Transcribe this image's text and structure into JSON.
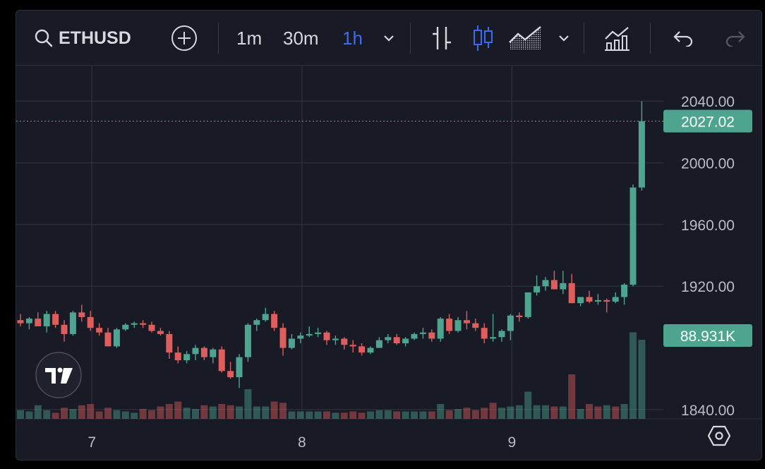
{
  "toolbar": {
    "symbol": "ETHUSD",
    "intervals": [
      "1m",
      "30m",
      "1h"
    ],
    "active_interval": "1h",
    "icons": [
      "search-icon",
      "add-circle-icon",
      "chevron-down-icon",
      "bar-chart-icon",
      "candlestick-icon",
      "area-chart-icon",
      "chevron-down-icon",
      "indicators-icon",
      "undo-icon",
      "redo-icon"
    ]
  },
  "colors": {
    "up": "#4ea58f",
    "down": "#de5e5e",
    "active": "#3b6cf0",
    "text": "#d6d8de",
    "axis_text": "#b8bcc6"
  },
  "badges": {
    "price_label": "2027.02",
    "volume_label": "88.931K"
  },
  "chart_data": {
    "type": "candlestick",
    "title": "",
    "y_ticks": [
      "2040.00",
      "2000.00",
      "1960.00",
      "1920.00",
      "1840.00"
    ],
    "x_ticks": [
      "7",
      "8",
      "9"
    ],
    "ylim": [
      1834,
      2063
    ],
    "grid": true,
    "last_price": 2027.02,
    "last_volume": "88.931K",
    "ohlc": [
      [
        1898,
        1902,
        1894,
        1896
      ],
      [
        1896,
        1900,
        1892,
        1899
      ],
      [
        1899,
        1903,
        1895,
        1894
      ],
      [
        1894,
        1904,
        1890,
        1902
      ],
      [
        1902,
        1904,
        1893,
        1895
      ],
      [
        1895,
        1898,
        1884,
        1889
      ],
      [
        1889,
        1904,
        1888,
        1903
      ],
      [
        1903,
        1908,
        1897,
        1900
      ],
      [
        1900,
        1904,
        1891,
        1893
      ],
      [
        1893,
        1896,
        1888,
        1890
      ],
      [
        1890,
        1893,
        1881,
        1881
      ],
      [
        1881,
        1893,
        1880,
        1892
      ],
      [
        1892,
        1896,
        1891,
        1895
      ],
      [
        1895,
        1897,
        1893,
        1896
      ],
      [
        1896,
        1898,
        1893,
        1895
      ],
      [
        1895,
        1897,
        1890,
        1891
      ],
      [
        1891,
        1893,
        1888,
        1889
      ],
      [
        1889,
        1891,
        1873,
        1877
      ],
      [
        1877,
        1881,
        1870,
        1872
      ],
      [
        1872,
        1878,
        1870,
        1876
      ],
      [
        1876,
        1882,
        1872,
        1880
      ],
      [
        1880,
        1881,
        1872,
        1874
      ],
      [
        1874,
        1880,
        1870,
        1879
      ],
      [
        1879,
        1881,
        1864,
        1865
      ],
      [
        1865,
        1871,
        1860,
        1861
      ],
      [
        1861,
        1876,
        1854,
        1874
      ],
      [
        1874,
        1896,
        1871,
        1895
      ],
      [
        1895,
        1899,
        1891,
        1898
      ],
      [
        1898,
        1906,
        1897,
        1902
      ],
      [
        1902,
        1904,
        1891,
        1893
      ],
      [
        1893,
        1896,
        1875,
        1880
      ],
      [
        1880,
        1889,
        1879,
        1886
      ],
      [
        1886,
        1890,
        1883,
        1888
      ],
      [
        1888,
        1894,
        1887,
        1889
      ],
      [
        1889,
        1893,
        1887,
        1890
      ],
      [
        1890,
        1891,
        1882,
        1885
      ],
      [
        1885,
        1888,
        1882,
        1886
      ],
      [
        1886,
        1887,
        1879,
        1882
      ],
      [
        1882,
        1885,
        1877,
        1881
      ],
      [
        1881,
        1883,
        1875,
        1877
      ],
      [
        1877,
        1881,
        1876,
        1880
      ],
      [
        1880,
        1887,
        1880,
        1885
      ],
      [
        1885,
        1889,
        1883,
        1887
      ],
      [
        1887,
        1889,
        1882,
        1883
      ],
      [
        1883,
        1887,
        1881,
        1886
      ],
      [
        1886,
        1890,
        1885,
        1889
      ],
      [
        1889,
        1893,
        1886,
        1890
      ],
      [
        1890,
        1892,
        1884,
        1886
      ],
      [
        1886,
        1900,
        1884,
        1899
      ],
      [
        1899,
        1902,
        1889,
        1891
      ],
      [
        1891,
        1900,
        1890,
        1898
      ],
      [
        1898,
        1904,
        1892,
        1896
      ],
      [
        1896,
        1899,
        1891,
        1893
      ],
      [
        1893,
        1896,
        1883,
        1886
      ],
      [
        1886,
        1902,
        1884,
        1887
      ],
      [
        1887,
        1892,
        1884,
        1891
      ],
      [
        1891,
        1902,
        1885,
        1901
      ],
      [
        1901,
        1903,
        1897,
        1900
      ],
      [
        1900,
        1916,
        1899,
        1916
      ],
      [
        1916,
        1927,
        1914,
        1920
      ],
      [
        1920,
        1926,
        1917,
        1924
      ],
      [
        1924,
        1930,
        1918,
        1918
      ],
      [
        1918,
        1930,
        1915,
        1922
      ],
      [
        1922,
        1928,
        1909,
        1909
      ],
      [
        1909,
        1913,
        1907,
        1913
      ],
      [
        1913,
        1917,
        1909,
        1910
      ],
      [
        1910,
        1915,
        1908,
        1911
      ],
      [
        1911,
        1912,
        1903,
        1910
      ],
      [
        1910,
        1916,
        1909,
        1913
      ],
      [
        1913,
        1922,
        1908,
        1921
      ],
      [
        1921,
        1986,
        1920,
        1984
      ],
      [
        1984,
        2040,
        1982,
        2027.02
      ]
    ],
    "volume": [
      [
        7,
        0
      ],
      [
        6,
        0
      ],
      [
        11,
        0
      ],
      [
        7,
        0
      ],
      [
        5,
        1
      ],
      [
        9,
        1
      ],
      [
        8,
        0
      ],
      [
        11,
        1
      ],
      [
        12,
        1
      ],
      [
        6,
        1
      ],
      [
        9,
        1
      ],
      [
        7,
        0
      ],
      [
        6,
        0
      ],
      [
        5,
        0
      ],
      [
        8,
        1
      ],
      [
        7,
        1
      ],
      [
        10,
        1
      ],
      [
        12,
        1
      ],
      [
        14,
        1
      ],
      [
        9,
        0
      ],
      [
        8,
        0
      ],
      [
        11,
        1
      ],
      [
        10,
        0
      ],
      [
        12,
        1
      ],
      [
        11,
        1
      ],
      [
        10,
        0
      ],
      [
        24,
        0
      ],
      [
        10,
        0
      ],
      [
        10,
        0
      ],
      [
        14,
        1
      ],
      [
        13,
        1
      ],
      [
        6,
        0
      ],
      [
        6,
        0
      ],
      [
        6,
        0
      ],
      [
        6,
        0
      ],
      [
        6,
        1
      ],
      [
        5,
        0
      ],
      [
        5,
        1
      ],
      [
        6,
        1
      ],
      [
        5,
        1
      ],
      [
        6,
        0
      ],
      [
        7,
        0
      ],
      [
        7,
        0
      ],
      [
        6,
        1
      ],
      [
        6,
        0
      ],
      [
        6,
        0
      ],
      [
        6,
        0
      ],
      [
        6,
        1
      ],
      [
        12,
        0
      ],
      [
        7,
        1
      ],
      [
        8,
        0
      ],
      [
        9,
        1
      ],
      [
        7,
        1
      ],
      [
        9,
        1
      ],
      [
        13,
        1
      ],
      [
        9,
        0
      ],
      [
        10,
        0
      ],
      [
        11,
        0
      ],
      [
        22,
        0
      ],
      [
        11,
        0
      ],
      [
        11,
        0
      ],
      [
        10,
        1
      ],
      [
        10,
        0
      ],
      [
        36,
        1
      ],
      [
        8,
        0
      ],
      [
        12,
        1
      ],
      [
        10,
        1
      ],
      [
        11,
        0
      ],
      [
        10,
        1
      ],
      [
        12,
        0
      ],
      [
        70,
        0
      ],
      [
        64,
        0
      ]
    ]
  }
}
